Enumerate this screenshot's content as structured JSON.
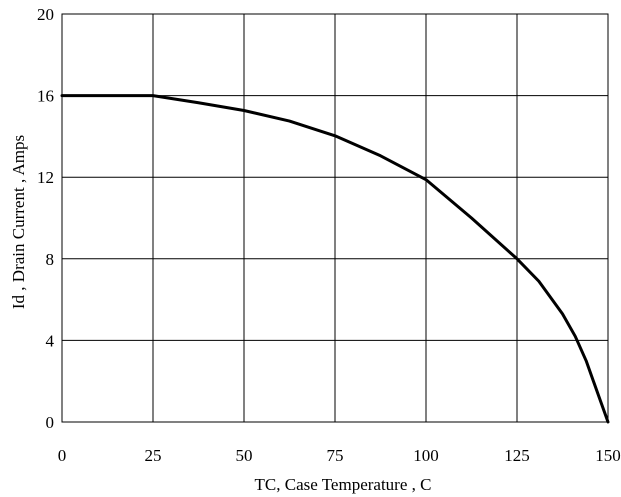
{
  "chart_data": {
    "type": "line",
    "title": "",
    "xlabel": "TC, Case Temperature , C",
    "ylabel": "Id , Drain Current , Amps",
    "xlim": [
      0,
      150
    ],
    "ylim": [
      0,
      20
    ],
    "x_ticks": [
      0,
      25,
      50,
      75,
      100,
      125,
      150
    ],
    "y_ticks": [
      0,
      4,
      8,
      12,
      16,
      20
    ],
    "x_tick_labels": [
      "0",
      "25",
      "50",
      "75",
      "100",
      "125",
      "150"
    ],
    "y_tick_labels": [
      "0",
      "4",
      "8",
      "12",
      "16",
      "20"
    ],
    "grid": true,
    "legend": "none",
    "series": [
      {
        "color": "#000000",
        "x": [
          0,
          25,
          37.5,
          50,
          62.5,
          75,
          87.5,
          100,
          112.5,
          125,
          131,
          137.5,
          141,
          144,
          146,
          148,
          150
        ],
        "y": [
          16,
          16,
          15.65,
          15.27,
          14.75,
          14.03,
          13.05,
          11.88,
          10.0,
          8.0,
          6.9,
          5.3,
          4.2,
          3.0,
          2.0,
          1.0,
          0
        ]
      }
    ]
  }
}
